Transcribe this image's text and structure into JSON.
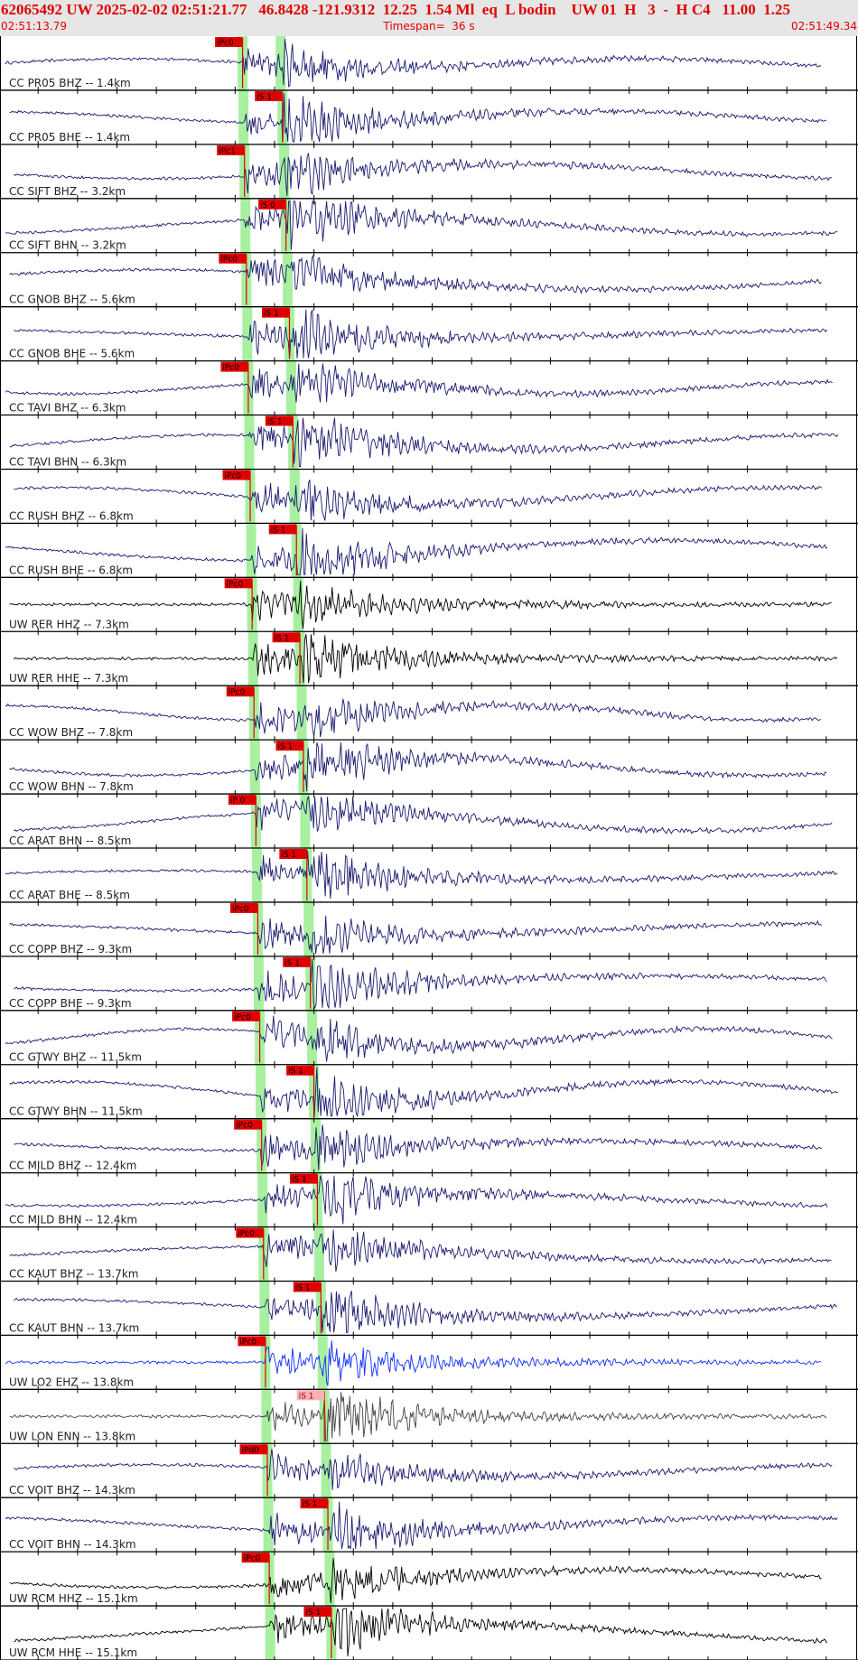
{
  "header": {
    "title": "62065492 UW 2025-02-02 02:51:21.77   46.8428 -121.9312  12.25  1.54 Ml  eq  L bodin    UW 01  H   3  -  H C4   11.00  1.25",
    "start_time": "02:51:13.79",
    "timespan": "Timespan=  36 s",
    "end_time": "02:51:49.34"
  },
  "traces": [
    {
      "label": "CC PR05 BHZ -- 1.4km",
      "pick": "iPc0"
    },
    {
      "label": "CC PR05 BHE -- 1.4km",
      "pick": "iS 1"
    },
    {
      "label": "CC SIFT BHZ -- 3.2km",
      "pick": "iPc1"
    },
    {
      "label": "CC SIFT BHN -- 3.2km",
      "pick": "iS 0"
    },
    {
      "label": "CC GNOB BHZ -- 5.6km",
      "pick": "iPc0"
    },
    {
      "label": "CC GNOB BHE -- 5.6km",
      "pick": "iS 1"
    },
    {
      "label": "CC TAVI BHZ -- 6.3km",
      "pick": "iPc0"
    },
    {
      "label": "CC TAVI BHN -- 6.3km",
      "pick": "iS 1"
    },
    {
      "label": "CC RUSH BHZ -- 6.8km",
      "pick": "iPc0"
    },
    {
      "label": "CC RUSH BHE -- 6.8km",
      "pick": "iS 1"
    },
    {
      "label": "UW RER HHZ -- 7.3km",
      "pick": "iPc0"
    },
    {
      "label": "UW RER HHE -- 7.3km",
      "pick": "iS 1"
    },
    {
      "label": "CC WOW BHZ -- 7.8km",
      "pick": "iPc0"
    },
    {
      "label": "CC WOW BHN -- 7.8km",
      "pick": "iS 1"
    },
    {
      "label": "CC ARAT BHN -- 8.5km",
      "pick": "iP 0"
    },
    {
      "label": "CC ARAT BHE -- 8.5km",
      "pick": "iS 1"
    },
    {
      "label": "CC COPP BHZ -- 9.3km",
      "pick": "iPc0"
    },
    {
      "label": "CC COPP BHE -- 9.3km",
      "pick": "iS 1"
    },
    {
      "label": "CC GTWY BHZ -- 11.5km",
      "pick": "iPc0"
    },
    {
      "label": "CC GTWY BHN -- 11.5km",
      "pick": "iS 1"
    },
    {
      "label": "CC MILD BHZ -- 12.4km",
      "pick": "iPc0"
    },
    {
      "label": "CC MILD BHN -- 12.4km",
      "pick": "iS 1"
    },
    {
      "label": "CC KAUT BHZ -- 13.7km",
      "pick": "iPc0"
    },
    {
      "label": "CC KAUT BHN -- 13.7km",
      "pick": "iS 1"
    },
    {
      "label": "UW LO2 EHZ -- 13.8km",
      "pick": "iPc0"
    },
    {
      "label": "UW LON ENN -- 13.8km",
      "pick": "iS 1"
    },
    {
      "label": "CC VOIT BHZ -- 14.3km",
      "pick": "iPd0"
    },
    {
      "label": "CC VOIT BHN -- 14.3km",
      "pick": "iS 1"
    },
    {
      "label": "UW RCM HHZ -- 15.1km",
      "pick": "iPc0"
    },
    {
      "label": "UW RCM HHE -- 15.1km",
      "pick": "iS 1"
    }
  ]
}
